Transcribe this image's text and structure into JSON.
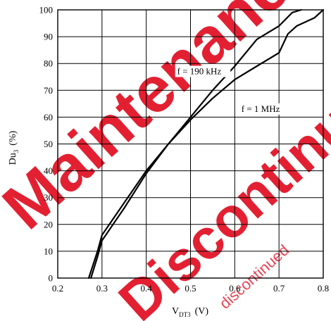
{
  "chart_data": {
    "type": "line",
    "xlabel": {
      "main": "V",
      "sub": "DT3",
      "unit": "(V)"
    },
    "ylabel": {
      "main": "Du",
      "sub": "3",
      "unit": "(%)"
    },
    "xlim": [
      0.2,
      0.8
    ],
    "ylim": [
      0,
      100
    ],
    "xticks": [
      0.2,
      0.3,
      0.4,
      0.5,
      0.6,
      0.7,
      0.8
    ],
    "yticks": [
      0,
      10,
      20,
      30,
      40,
      50,
      60,
      70,
      80,
      90,
      100
    ],
    "xtick_labels": [
      "0.2",
      "0.3",
      "0.4",
      "0.5",
      "0.6",
      "0.7",
      "0.8"
    ],
    "ytick_labels": [
      "0",
      "10",
      "20",
      "30",
      "40",
      "50",
      "60",
      "70",
      "80",
      "90",
      "100"
    ],
    "grid": true,
    "annotations": [
      {
        "text": "f = 190 kHz",
        "x": 0.47,
        "y": 76
      },
      {
        "text": "f = 1 MHz",
        "x": 0.615,
        "y": 62
      }
    ],
    "series": [
      {
        "name": "f = 190 kHz",
        "x": [
          0.27,
          0.29,
          0.3,
          0.35,
          0.4,
          0.45,
          0.5,
          0.55,
          0.6,
          0.65,
          0.7,
          0.73,
          0.75
        ],
        "y": [
          0,
          10,
          16,
          28,
          40,
          50,
          60,
          70,
          79,
          89,
          94,
          99,
          100
        ]
      },
      {
        "name": "f = 1 MHz",
        "x": [
          0.275,
          0.29,
          0.3,
          0.35,
          0.4,
          0.45,
          0.5,
          0.55,
          0.6,
          0.65,
          0.7,
          0.72,
          0.74,
          0.78,
          0.8
        ],
        "y": [
          0,
          8,
          14,
          26,
          39,
          50,
          59,
          67,
          74,
          79,
          84,
          91,
          94,
          97,
          100
        ]
      }
    ]
  },
  "watermark": {
    "lines": [
      "Maintenance",
      "Discontinued"
    ],
    "small_text": "discontinued",
    "color": "#e1081c"
  }
}
